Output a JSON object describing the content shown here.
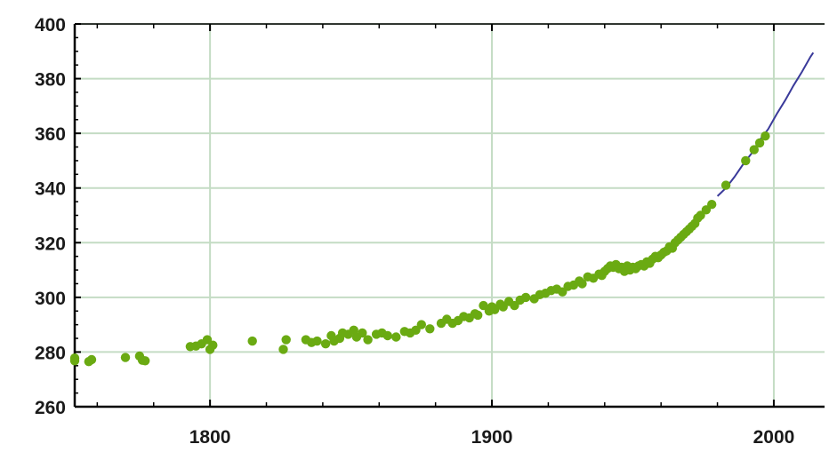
{
  "chart_data": {
    "type": "scatter",
    "title": "",
    "xlabel": "",
    "ylabel": "",
    "xlim": [
      1752,
      2018
    ],
    "ylim": [
      260,
      400
    ],
    "xticks": [
      1800,
      1900,
      2000
    ],
    "yticks": [
      260,
      280,
      300,
      320,
      340,
      360,
      380,
      400
    ],
    "grid": true,
    "legend": "none",
    "colors": {
      "points": "#6aaa12",
      "line": "#3a3a9a",
      "grid": "#c4dcc4",
      "axis": "#000000"
    },
    "series": [
      {
        "kind": "scatter",
        "points": [
          [
            1752,
            276.8
          ],
          [
            1752,
            277.8
          ],
          [
            1757,
            276.5
          ],
          [
            1758,
            277.2
          ],
          [
            1770,
            278.0
          ],
          [
            1775,
            278.5
          ],
          [
            1776,
            277.0
          ],
          [
            1777,
            276.8
          ],
          [
            1793,
            282.0
          ],
          [
            1795,
            282.2
          ],
          [
            1797,
            283.0
          ],
          [
            1799,
            284.5
          ],
          [
            1800,
            281.0
          ],
          [
            1801,
            282.5
          ],
          [
            1815,
            284.0
          ],
          [
            1826,
            281.0
          ],
          [
            1827,
            284.5
          ],
          [
            1834,
            284.5
          ],
          [
            1836,
            283.5
          ],
          [
            1838,
            284.0
          ],
          [
            1841,
            283.0
          ],
          [
            1843,
            286.0
          ],
          [
            1844,
            284.0
          ],
          [
            1846,
            285.0
          ],
          [
            1847,
            287.0
          ],
          [
            1849,
            286.5
          ],
          [
            1851,
            288.0
          ],
          [
            1852,
            285.5
          ],
          [
            1854,
            287.0
          ],
          [
            1856,
            284.5
          ],
          [
            1859,
            286.5
          ],
          [
            1861,
            287.0
          ],
          [
            1863,
            286.0
          ],
          [
            1866,
            285.5
          ],
          [
            1869,
            287.5
          ],
          [
            1871,
            287.0
          ],
          [
            1873,
            288.0
          ],
          [
            1875,
            290.0
          ],
          [
            1878,
            288.5
          ],
          [
            1882,
            290.5
          ],
          [
            1884,
            292.0
          ],
          [
            1886,
            290.5
          ],
          [
            1888,
            291.5
          ],
          [
            1890,
            293.0
          ],
          [
            1892,
            292.5
          ],
          [
            1894,
            294.0
          ],
          [
            1895,
            293.5
          ],
          [
            1897,
            297.0
          ],
          [
            1899,
            295.0
          ],
          [
            1900,
            296.5
          ],
          [
            1901,
            295.5
          ],
          [
            1903,
            297.5
          ],
          [
            1904,
            296.5
          ],
          [
            1906,
            298.5
          ],
          [
            1908,
            297.0
          ],
          [
            1910,
            299.0
          ],
          [
            1912,
            300.0
          ],
          [
            1915,
            299.5
          ],
          [
            1917,
            301.0
          ],
          [
            1919,
            301.5
          ],
          [
            1921,
            302.5
          ],
          [
            1923,
            303.0
          ],
          [
            1925,
            302.0
          ],
          [
            1927,
            304.0
          ],
          [
            1929,
            304.5
          ],
          [
            1931,
            306.0
          ],
          [
            1932,
            305.0
          ],
          [
            1934,
            307.5
          ],
          [
            1936,
            307.0
          ],
          [
            1938,
            308.5
          ],
          [
            1939,
            308.0
          ],
          [
            1940,
            309.5
          ],
          [
            1941,
            310.5
          ],
          [
            1942,
            311.5
          ],
          [
            1943,
            311.0
          ],
          [
            1944,
            312.0
          ],
          [
            1945,
            310.5
          ],
          [
            1946,
            311.0
          ],
          [
            1947,
            309.5
          ],
          [
            1948,
            311.5
          ],
          [
            1949,
            310.0
          ],
          [
            1950,
            311.0
          ],
          [
            1951,
            310.5
          ],
          [
            1952,
            311.5
          ],
          [
            1953,
            312.0
          ],
          [
            1954,
            311.5
          ],
          [
            1955,
            313.0
          ],
          [
            1956,
            312.5
          ],
          [
            1957,
            314.0
          ],
          [
            1958,
            315.0
          ],
          [
            1959,
            314.5
          ],
          [
            1960,
            315.5
          ],
          [
            1961,
            316.5
          ],
          [
            1962,
            317.0
          ],
          [
            1963,
            318.5
          ],
          [
            1964,
            318.0
          ],
          [
            1965,
            320.0
          ],
          [
            1966,
            321.0
          ],
          [
            1967,
            322.0
          ],
          [
            1968,
            323.0
          ],
          [
            1969,
            324.0
          ],
          [
            1970,
            325.0
          ],
          [
            1971,
            326.0
          ],
          [
            1972,
            327.0
          ],
          [
            1973,
            329.0
          ],
          [
            1974,
            330.0
          ],
          [
            1976,
            332.0
          ],
          [
            1978,
            334.0
          ],
          [
            1983,
            341.0
          ],
          [
            1990,
            350.0
          ],
          [
            1993,
            354.0
          ],
          [
            1995,
            356.5
          ],
          [
            1997,
            359.0
          ]
        ]
      },
      {
        "kind": "line",
        "points": [
          [
            1980,
            337.0
          ],
          [
            1983,
            340.0
          ],
          [
            1986,
            344.0
          ],
          [
            1989,
            348.5
          ],
          [
            1992,
            352.5
          ],
          [
            1995,
            357.5
          ],
          [
            1998,
            361.5
          ],
          [
            2001,
            367.0
          ],
          [
            2004,
            372.0
          ],
          [
            2007,
            377.5
          ],
          [
            2010,
            382.5
          ],
          [
            2013,
            388.0
          ],
          [
            2014,
            389.5
          ]
        ]
      }
    ]
  }
}
